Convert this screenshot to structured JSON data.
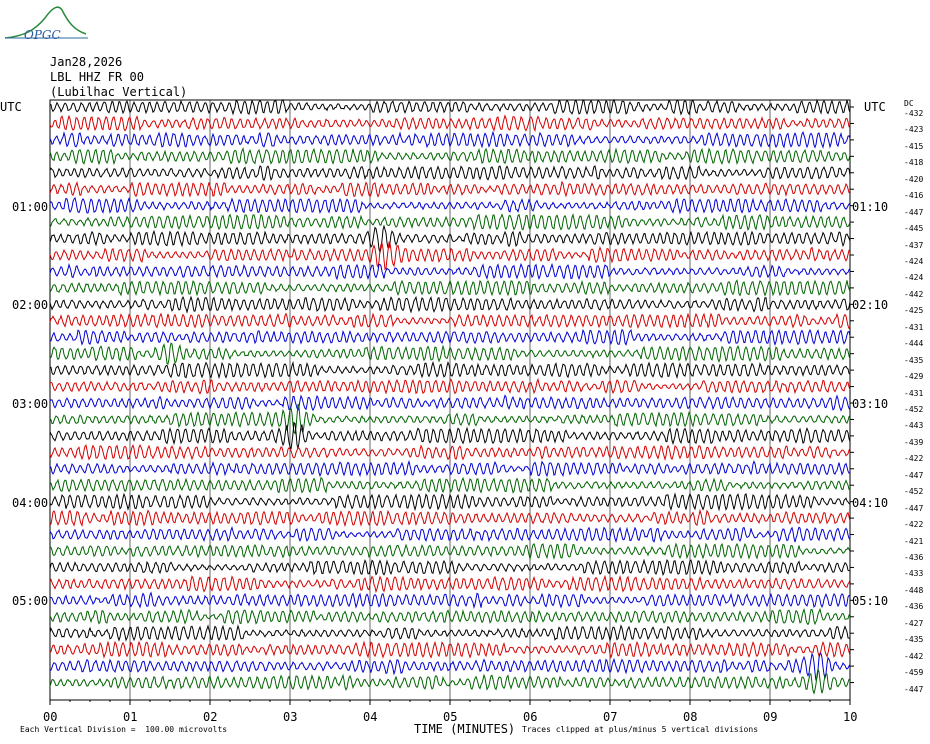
{
  "logo": {
    "text": "OPGC"
  },
  "header": {
    "date": "Jan28,2026",
    "station": "LBL HHZ FR 00",
    "location": "(Lubilhac Vertical)"
  },
  "utc_label_left": "UTC",
  "utc_label_right": "UTC",
  "dc_label": "DC",
  "left_time_labels": [
    {
      "row": 6,
      "text": "01:00"
    },
    {
      "row": 12,
      "text": "02:00"
    },
    {
      "row": 18,
      "text": "03:00"
    },
    {
      "row": 24,
      "text": "04:00"
    },
    {
      "row": 30,
      "text": "05:00"
    }
  ],
  "right_time_labels": [
    {
      "row": 6,
      "text": "01:10"
    },
    {
      "row": 12,
      "text": "02:10"
    },
    {
      "row": 18,
      "text": "03:10"
    },
    {
      "row": 24,
      "text": "04:10"
    },
    {
      "row": 30,
      "text": "05:10"
    }
  ],
  "dc_offsets": [
    "-432",
    "-423",
    "-415",
    "-418",
    "-420",
    "-416",
    "-447",
    "-445",
    "-437",
    "-424",
    "-424",
    "-442",
    "-425",
    "-431",
    "-444",
    "-435",
    "-429",
    "-431",
    "-452",
    "-443",
    "-439",
    "-422",
    "-447",
    "-452",
    "-447",
    "-422",
    "-421",
    "-436",
    "-433",
    "-448",
    "-436",
    "-427",
    "-435",
    "-442",
    "-459",
    "-447"
  ],
  "trace_colors": [
    "#000000",
    "#d40000",
    "#0000d4",
    "#006400"
  ],
  "footer": {
    "scale_note": "Each Vertical Division =  100.00 microvolts",
    "clip_note": "Traces clipped at plus/minus 5 vertical divisions",
    "xlabel": "TIME (MINUTES)"
  },
  "chart_data": {
    "type": "line",
    "title": "",
    "xlabel": "TIME (MINUTES)",
    "ylabel": "",
    "x_ticks": [
      "00",
      "01",
      "02",
      "03",
      "04",
      "05",
      "06",
      "07",
      "08",
      "09",
      "10"
    ],
    "xlim": [
      0,
      10
    ],
    "n_traces": 36,
    "minutes_per_trace": 10,
    "grid": true,
    "series_note": "Continuous seismic velocity trace, 36 lines of 10 minutes each, color cycle black/red/blue/green",
    "event_markers": [
      {
        "trace": 8,
        "minute": 4.15
      },
      {
        "trace": 9,
        "minute": 4.2
      },
      {
        "trace": 15,
        "minute": 1.5
      },
      {
        "trace": 19,
        "minute": 3.1
      },
      {
        "trace": 20,
        "minute": 3.05
      },
      {
        "trace": 34,
        "minute": 9.6
      },
      {
        "trace": 35,
        "minute": 9.6
      }
    ]
  }
}
